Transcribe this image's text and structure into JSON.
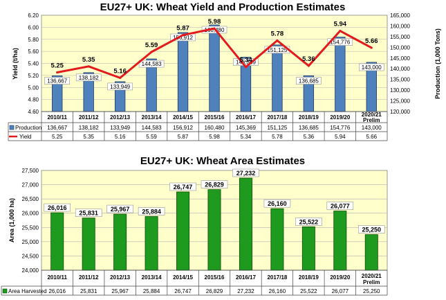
{
  "chart_data": [
    {
      "type": "bar",
      "title": "EU27+ UK: Wheat Yield and Production Estimates",
      "categories": [
        "2010/11",
        "2011/12",
        "2012/13",
        "2013/14",
        "2014/15",
        "2015/16",
        "2016/17",
        "2017/18",
        "2018/19",
        "2019/20",
        "2020/21 Prelim"
      ],
      "ylabel_left": "Yield (t/ha)",
      "ylabel_right": "Production (1,000 Tons)",
      "ylim_left": [
        4.6,
        6.2
      ],
      "yticks_left": [
        "4.60",
        "4.80",
        "5.00",
        "5.20",
        "5.40",
        "5.60",
        "5.80",
        "6.00",
        "6.20"
      ],
      "ylim_right": [
        120000,
        165000
      ],
      "yticks_right": [
        "120,000",
        "125,000",
        "130,000",
        "135,000",
        "140,000",
        "145,000",
        "150,000",
        "155,000",
        "160,000",
        "165,000"
      ],
      "series": [
        {
          "name": "Production",
          "type": "bar",
          "axis": "right",
          "color": "#4f81bd",
          "values": [
            136667,
            138182,
            133949,
            144583,
            156912,
            160480,
            145369,
            151125,
            136685,
            154776,
            143000
          ],
          "labels": [
            "136,667",
            "138,182",
            "133,949",
            "144,583",
            "156,912",
            "160,480",
            "145,369",
            "151,125",
            "136,685",
            "154,776",
            "143,000"
          ]
        },
        {
          "name": "Yield",
          "type": "line",
          "axis": "left",
          "color": "#e31a1c",
          "values": [
            5.25,
            5.35,
            5.16,
            5.59,
            5.87,
            5.98,
            5.34,
            5.78,
            5.36,
            5.94,
            5.66
          ],
          "labels": [
            "5.25",
            "5.35",
            "5.16",
            "5.59",
            "5.87",
            "5.98",
            "5.34",
            "5.78",
            "5.36",
            "5.94",
            "5.66"
          ]
        }
      ],
      "data_table": true,
      "grid": true
    },
    {
      "type": "bar",
      "title": "EU27+ UK: Wheat Area Estimates",
      "categories": [
        "2010/11",
        "2011/12",
        "2012/13",
        "2013/14",
        "2014/15",
        "2015/16",
        "2016/17",
        "2017/18",
        "2018/19",
        "2019/20",
        "2020/21 Prelim"
      ],
      "ylabel": "Area (1,000 ha)",
      "ylim": [
        24000,
        27500
      ],
      "yticks": [
        "24,000",
        "24,500",
        "25,000",
        "25,500",
        "26,000",
        "26,500",
        "27,000",
        "27,500"
      ],
      "series": [
        {
          "name": "Area Harvested",
          "type": "bar",
          "color": "#1e9a1e",
          "values": [
            26016,
            25831,
            25967,
            25884,
            26747,
            26829,
            27232,
            26160,
            25522,
            26077,
            25250
          ],
          "labels": [
            "26,016",
            "25,831",
            "25,967",
            "25,884",
            "26,747",
            "26,829",
            "27,232",
            "26,160",
            "25,522",
            "26,077",
            "25,250"
          ]
        }
      ],
      "data_table": true,
      "grid": true
    }
  ],
  "colors": {
    "plot_bg": "#ffffcc",
    "production_bar": "#4f81bd",
    "yield_line": "#e31a1c",
    "area_bar": "#1e9a1e"
  }
}
